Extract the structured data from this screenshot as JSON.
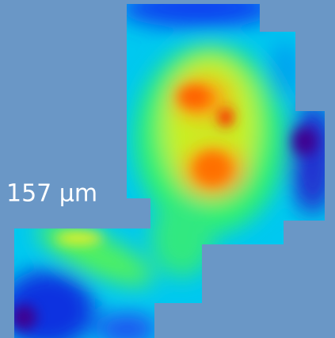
{
  "scale_label": "157 µm"
}
